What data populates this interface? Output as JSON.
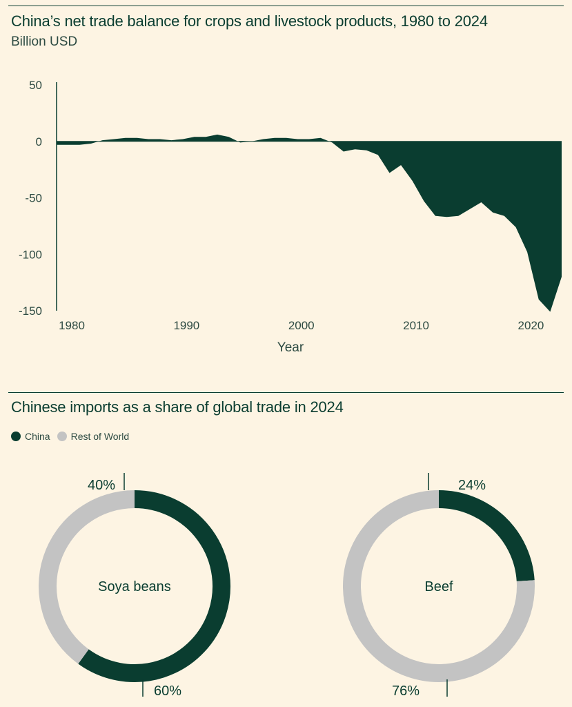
{
  "colors": {
    "china": "#0a3d30",
    "rest": "#c3c3c3",
    "background": "#fdf4e3"
  },
  "chart_data": [
    {
      "type": "area",
      "title": "China’s net trade balance for crops and livestock products, 1980 to 2024",
      "subtitle": "Billion USD",
      "xlabel": "Year",
      "ylabel": "",
      "xlim": [
        1980,
        2024
      ],
      "ylim": [
        -150,
        50
      ],
      "yticks": [
        50,
        0,
        -50,
        -100,
        -150
      ],
      "xticks": [
        1980,
        1990,
        2000,
        2010,
        2020
      ],
      "x": [
        1980,
        1981,
        1982,
        1983,
        1984,
        1985,
        1986,
        1987,
        1988,
        1989,
        1990,
        1991,
        1992,
        1993,
        1994,
        1995,
        1996,
        1997,
        1998,
        1999,
        2000,
        2001,
        2002,
        2003,
        2004,
        2005,
        2006,
        2007,
        2008,
        2009,
        2010,
        2011,
        2012,
        2013,
        2014,
        2015,
        2016,
        2017,
        2018,
        2019,
        2020,
        2021,
        2022,
        2023,
        2024
      ],
      "y": [
        -3,
        -3,
        -3,
        -2,
        1,
        2,
        3,
        3,
        2,
        2,
        1,
        2,
        4,
        4,
        6,
        4,
        -1,
        0,
        2,
        3,
        3,
        2,
        2,
        3,
        -1,
        -9,
        -7,
        -8,
        -12,
        -28,
        -21,
        -35,
        -53,
        -66,
        -67,
        -66,
        -60,
        -54,
        -63,
        -66,
        -76,
        -98,
        -140,
        -151,
        -120
      ]
    },
    {
      "type": "pie",
      "title": "Chinese imports as a share of global trade in 2024",
      "legend": [
        {
          "label": "China",
          "color": "#0a3d30"
        },
        {
          "label": "Rest of World",
          "color": "#c3c3c3"
        }
      ],
      "donuts": [
        {
          "name": "Soya beans",
          "china": 60,
          "rest": 40,
          "china_label": "60%",
          "rest_label": "40%"
        },
        {
          "name": "Beef",
          "china": 24,
          "rest": 76,
          "china_label": "24%",
          "rest_label": "76%"
        }
      ]
    }
  ]
}
